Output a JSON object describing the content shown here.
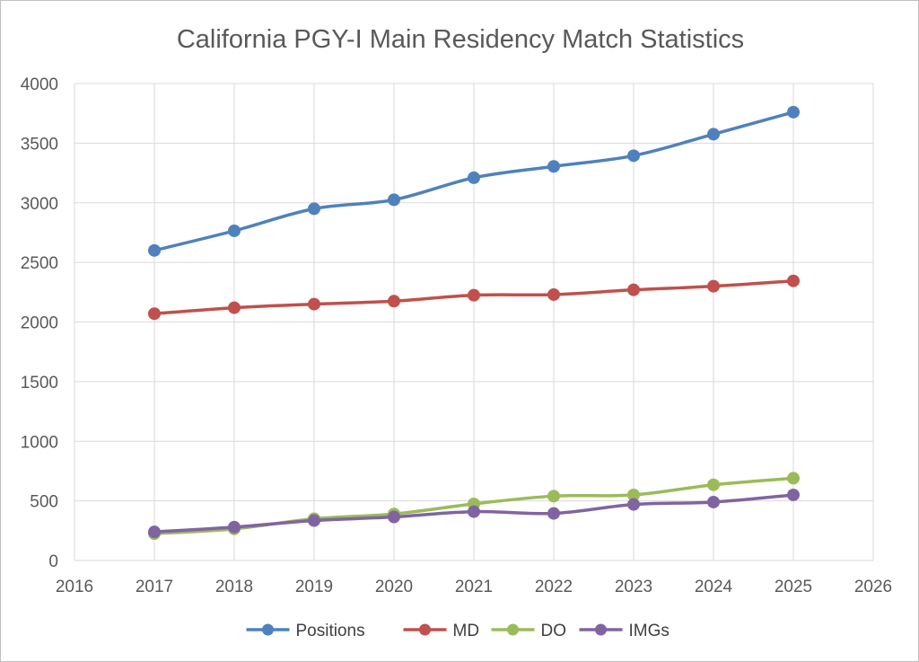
{
  "chart_data": {
    "type": "line",
    "title": "California PGY-I Main Residency Match Statistics",
    "xlabel": "",
    "ylabel": "",
    "xlim": [
      2016,
      2026
    ],
    "ylim": [
      0,
      4000
    ],
    "x_ticks": [
      2016,
      2017,
      2018,
      2019,
      2020,
      2021,
      2022,
      2023,
      2024,
      2025,
      2026
    ],
    "y_ticks": [
      0,
      500,
      1000,
      1500,
      2000,
      2500,
      3000,
      3500,
      4000
    ],
    "grid": true,
    "legend_position": "bottom",
    "x": [
      2017,
      2018,
      2019,
      2020,
      2021,
      2022,
      2023,
      2024,
      2025
    ],
    "series": [
      {
        "name": "Positions",
        "color": "#4f81bd",
        "values": [
          2600,
          2765,
          2950,
          3025,
          3210,
          3305,
          3395,
          3575,
          3760
        ]
      },
      {
        "name": "MD",
        "color": "#c0504d",
        "values": [
          2070,
          2120,
          2150,
          2175,
          2225,
          2230,
          2270,
          2300,
          2345
        ]
      },
      {
        "name": "DO",
        "color": "#9bbb59",
        "values": [
          225,
          265,
          350,
          390,
          475,
          540,
          550,
          635,
          690
        ]
      },
      {
        "name": "IMGs",
        "color": "#8064a2",
        "values": [
          240,
          280,
          335,
          365,
          410,
          395,
          470,
          490,
          550
        ]
      }
    ]
  }
}
